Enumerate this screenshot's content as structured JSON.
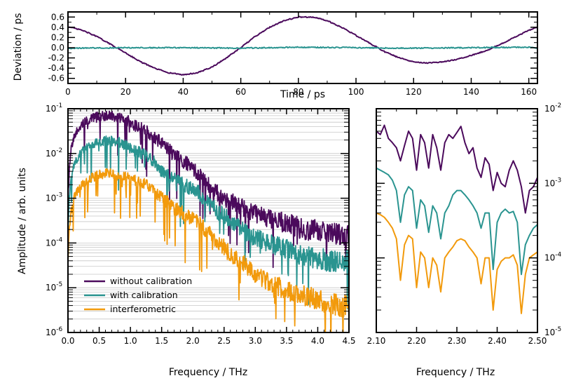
{
  "chart_data": [
    {
      "type": "line",
      "panel": "top",
      "xlabel": "Time / ps",
      "ylabel": "Deviation / ps",
      "xlim": [
        0,
        163
      ],
      "ylim": [
        -0.7,
        0.7
      ],
      "xticks": [
        "0",
        "20",
        "40",
        "60",
        "80",
        "100",
        "120",
        "140",
        "160"
      ],
      "yticks": [
        "-0.6",
        "-0.4",
        "-0.2",
        "0.0",
        "0.2",
        "0.4",
        "0.6"
      ],
      "series": [
        {
          "name": "without calibration",
          "color": "#4b0a5c",
          "x": [
            0,
            5,
            10,
            15,
            20,
            25,
            30,
            35,
            40,
            45,
            50,
            55,
            60,
            65,
            70,
            75,
            80,
            85,
            90,
            95,
            100,
            105,
            110,
            115,
            120,
            125,
            130,
            135,
            140,
            145,
            150,
            155,
            160,
            163
          ],
          "y": [
            0.41,
            0.34,
            0.22,
            0.06,
            -0.1,
            -0.27,
            -0.4,
            -0.49,
            -0.53,
            -0.49,
            -0.38,
            -0.2,
            0.0,
            0.22,
            0.4,
            0.53,
            0.6,
            0.6,
            0.53,
            0.4,
            0.24,
            0.08,
            -0.08,
            -0.2,
            -0.28,
            -0.3,
            -0.28,
            -0.23,
            -0.15,
            -0.06,
            0.06,
            0.2,
            0.34,
            0.41
          ]
        },
        {
          "name": "with calibration",
          "color": "#2a9490",
          "x": [
            0,
            20,
            40,
            60,
            80,
            100,
            120,
            140,
            160,
            163
          ],
          "y": [
            -0.01,
            0.0,
            0.0,
            -0.01,
            0.01,
            0.0,
            -0.01,
            0.0,
            0.01,
            -0.01
          ]
        }
      ]
    },
    {
      "type": "line",
      "panel": "bottom-left",
      "xlabel": "Frequency / THz",
      "ylabel": "Amplitude / arb. units",
      "xscale": "linear",
      "yscale": "log",
      "xlim": [
        0,
        4.5
      ],
      "ylim": [
        1e-06,
        0.1
      ],
      "xticks": [
        "0.0",
        "0.5",
        "1.0",
        "1.5",
        "2.0",
        "2.5",
        "3.0",
        "3.5",
        "4.0",
        "4.5"
      ],
      "ytick_values": [
        1e-06,
        1e-05,
        0.0001,
        0.001,
        0.01,
        0.1
      ],
      "legend": "lower-left",
      "series": [
        {
          "name": "without calibration",
          "color": "#4b0a5c",
          "x": [
            0.0,
            0.02,
            0.05,
            0.1,
            0.2,
            0.3,
            0.4,
            0.5,
            0.6,
            0.7,
            0.8,
            0.9,
            1.0,
            1.1,
            1.2,
            1.3,
            1.4,
            1.5,
            1.6,
            1.7,
            1.8,
            1.9,
            2.0,
            2.1,
            2.2,
            2.3,
            2.4,
            2.5,
            2.6,
            2.7,
            2.8,
            2.9,
            3.0,
            3.2,
            3.4,
            3.6,
            3.8,
            4.0,
            4.2,
            4.4,
            4.5
          ],
          "y": [
            0.0008,
            0.004,
            0.012,
            0.025,
            0.04,
            0.055,
            0.063,
            0.068,
            0.07,
            0.069,
            0.066,
            0.06,
            0.05,
            0.04,
            0.035,
            0.028,
            0.022,
            0.017,
            0.013,
            0.009,
            0.0075,
            0.006,
            0.0045,
            0.0035,
            0.0022,
            0.0017,
            0.0013,
            0.00095,
            0.0009,
            0.00075,
            0.0006,
            0.0005,
            0.00045,
            0.00035,
            0.0003,
            0.00025,
            0.0002,
            0.00019,
            0.00016,
            0.00015,
            0.00014
          ]
        },
        {
          "name": "with calibration",
          "color": "#2a9490",
          "x": [
            0.0,
            0.02,
            0.05,
            0.1,
            0.2,
            0.3,
            0.4,
            0.5,
            0.6,
            0.7,
            0.8,
            0.9,
            1.0,
            1.1,
            1.2,
            1.3,
            1.4,
            1.5,
            1.6,
            1.7,
            1.8,
            1.9,
            2.0,
            2.1,
            2.2,
            2.3,
            2.4,
            2.5,
            2.6,
            2.7,
            2.8,
            2.9,
            3.0,
            3.2,
            3.4,
            3.6,
            3.8,
            4.0,
            4.2,
            4.4,
            4.5
          ],
          "y": [
            0.0002,
            0.001,
            0.003,
            0.006,
            0.01,
            0.014,
            0.016,
            0.018,
            0.019,
            0.019,
            0.018,
            0.016,
            0.013,
            0.011,
            0.01,
            0.008,
            0.006,
            0.004,
            0.0033,
            0.0026,
            0.0022,
            0.0019,
            0.0016,
            0.0013,
            0.0009,
            0.0007,
            0.0005,
            0.0004,
            0.00033,
            0.00025,
            0.0002,
            0.00016,
            0.00013,
            0.0001,
            8e-05,
            6.5e-05,
            5e-05,
            4.5e-05,
            4e-05,
            3.8e-05,
            4e-05
          ]
        },
        {
          "name": "interferometric",
          "color": "#f29a0c",
          "x": [
            0.0,
            0.02,
            0.05,
            0.1,
            0.2,
            0.3,
            0.4,
            0.5,
            0.6,
            0.7,
            0.8,
            0.9,
            1.0,
            1.1,
            1.2,
            1.3,
            1.4,
            1.5,
            1.6,
            1.7,
            1.8,
            1.9,
            2.0,
            2.1,
            2.2,
            2.3,
            2.4,
            2.5,
            2.6,
            2.7,
            2.8,
            2.9,
            3.0,
            3.2,
            3.4,
            3.6,
            3.8,
            4.0,
            4.2,
            4.4,
            4.5
          ],
          "y": [
            4e-05,
            0.0002,
            0.0005,
            0.0011,
            0.0018,
            0.0025,
            0.003,
            0.0033,
            0.0035,
            0.0035,
            0.0033,
            0.0031,
            0.0028,
            0.0024,
            0.0021,
            0.0018,
            0.0014,
            0.001,
            0.0008,
            0.0006,
            0.0005,
            0.0004,
            0.00035,
            0.00028,
            0.0002,
            0.00015,
            0.00011,
            8e-05,
            6e-05,
            4.5e-05,
            3.5e-05,
            2.7e-05,
            2e-05,
            1.4e-05,
            1e-05,
            8e-06,
            6.5e-06,
            5.5e-06,
            4.5e-06,
            4e-06,
            3.5e-06
          ]
        }
      ]
    },
    {
      "type": "line",
      "panel": "bottom-right",
      "xlabel": "Frequency / THz",
      "yscale": "log",
      "xlim": [
        2.1,
        2.5
      ],
      "ylim": [
        1e-05,
        0.01
      ],
      "xticks": [
        "2.10",
        "2.20",
        "2.30",
        "2.40",
        "2.50"
      ],
      "ytick_values": [
        1e-05,
        0.0001,
        0.001,
        0.01
      ],
      "series": [
        {
          "name": "without calibration",
          "color": "#4b0a5c",
          "x": [
            2.1,
            2.11,
            2.12,
            2.13,
            2.14,
            2.15,
            2.16,
            2.17,
            2.18,
            2.19,
            2.2,
            2.21,
            2.22,
            2.23,
            2.24,
            2.25,
            2.26,
            2.27,
            2.28,
            2.29,
            2.3,
            2.31,
            2.32,
            2.33,
            2.34,
            2.35,
            2.36,
            2.37,
            2.38,
            2.39,
            2.4,
            2.41,
            2.42,
            2.43,
            2.44,
            2.45,
            2.46,
            2.47,
            2.48,
            2.49,
            2.5
          ],
          "y": [
            0.005,
            0.0045,
            0.006,
            0.004,
            0.0035,
            0.003,
            0.002,
            0.0032,
            0.005,
            0.004,
            0.0015,
            0.0045,
            0.0035,
            0.0016,
            0.0045,
            0.003,
            0.0015,
            0.0035,
            0.0045,
            0.004,
            0.0048,
            0.0058,
            0.0035,
            0.0025,
            0.003,
            0.0016,
            0.0012,
            0.0022,
            0.0018,
            0.0008,
            0.0014,
            0.001,
            0.0009,
            0.0015,
            0.002,
            0.0015,
            0.0009,
            0.0004,
            0.0008,
            0.0009,
            0.0012
          ]
        },
        {
          "name": "with calibration",
          "color": "#2a9490",
          "x": [
            2.1,
            2.11,
            2.12,
            2.13,
            2.14,
            2.15,
            2.16,
            2.17,
            2.18,
            2.19,
            2.2,
            2.21,
            2.22,
            2.23,
            2.24,
            2.25,
            2.26,
            2.27,
            2.28,
            2.29,
            2.3,
            2.31,
            2.32,
            2.33,
            2.34,
            2.35,
            2.36,
            2.37,
            2.38,
            2.39,
            2.4,
            2.41,
            2.42,
            2.43,
            2.44,
            2.45,
            2.46,
            2.47,
            2.48,
            2.49,
            2.5
          ],
          "y": [
            0.0016,
            0.0015,
            0.0014,
            0.0013,
            0.0011,
            0.0008,
            0.0003,
            0.0007,
            0.0009,
            0.0008,
            0.00025,
            0.0006,
            0.0005,
            0.00022,
            0.0005,
            0.0004,
            0.00018,
            0.0004,
            0.0005,
            0.0007,
            0.0008,
            0.0008,
            0.0007,
            0.0006,
            0.0005,
            0.0004,
            0.00025,
            0.0004,
            0.0004,
            7e-05,
            0.0003,
            0.0004,
            0.00045,
            0.0004,
            0.00042,
            0.0003,
            6e-05,
            0.00015,
            0.0002,
            0.00025,
            0.00028
          ]
        },
        {
          "name": "interferometric",
          "color": "#f29a0c",
          "x": [
            2.1,
            2.11,
            2.12,
            2.13,
            2.14,
            2.15,
            2.16,
            2.17,
            2.18,
            2.19,
            2.2,
            2.21,
            2.22,
            2.23,
            2.24,
            2.25,
            2.26,
            2.27,
            2.28,
            2.29,
            2.3,
            2.31,
            2.32,
            2.33,
            2.34,
            2.35,
            2.36,
            2.37,
            2.38,
            2.39,
            2.4,
            2.41,
            2.42,
            2.43,
            2.44,
            2.45,
            2.46,
            2.47,
            2.48,
            2.49,
            2.5
          ],
          "y": [
            0.0004,
            0.00038,
            0.00035,
            0.0003,
            0.00025,
            0.00018,
            5e-05,
            0.00015,
            0.0002,
            0.00018,
            4e-05,
            0.00012,
            0.0001,
            4e-05,
            0.0001,
            8e-05,
            3.5e-05,
            0.0001,
            0.00012,
            0.00014,
            0.00017,
            0.00018,
            0.00017,
            0.00014,
            0.00012,
            0.0001,
            4.5e-05,
            0.0001,
            0.0001,
            2e-05,
            7e-05,
            9e-05,
            0.0001,
            0.0001,
            0.00011,
            8e-05,
            1.8e-05,
            6e-05,
            0.0001,
            0.00011,
            0.00012
          ]
        }
      ]
    }
  ]
}
